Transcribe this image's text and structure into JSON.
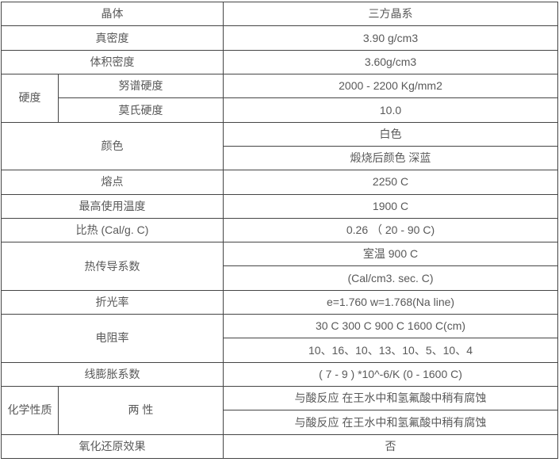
{
  "colors": {
    "border": "#454545",
    "text": "#595959",
    "background": "#ffffff"
  },
  "table": {
    "rows": [
      {
        "cells": [
          {
            "text": "晶体"
          },
          {
            "text": "三方晶系"
          }
        ]
      },
      {
        "cells": [
          {
            "text": "真密度"
          },
          {
            "text": "3.90 g/cm3"
          }
        ]
      },
      {
        "cells": [
          {
            "text": "体积密度"
          },
          {
            "text": "3.60g/cm3"
          }
        ]
      },
      {
        "cells": [
          {
            "text": "硬度"
          },
          {
            "text": "努谱硬度"
          },
          {
            "text": "2000 - 2200 Kg/mm2"
          }
        ]
      },
      {
        "cells": [
          {
            "text": "莫氏硬度"
          },
          {
            "text": "10.0"
          }
        ]
      },
      {
        "cells": [
          {
            "text": "颜色"
          },
          {
            "text": "白色"
          }
        ]
      },
      {
        "cells": [
          {
            "text": "煅烧后颜色 深蓝"
          }
        ]
      },
      {
        "cells": [
          {
            "text": "熔点"
          },
          {
            "text": "2250 C"
          }
        ]
      },
      {
        "cells": [
          {
            "text": "最高使用温度"
          },
          {
            "text": "1900 C"
          }
        ]
      },
      {
        "cells": [
          {
            "text": "比热 (Cal/g. C)"
          },
          {
            "text": "0.26 （ 20 - 90 C)"
          }
        ]
      },
      {
        "cells": [
          {
            "text": "热传导系数"
          },
          {
            "text": "室温 900 C"
          }
        ]
      },
      {
        "cells": [
          {
            "text": "(Cal/cm3. sec. C)"
          }
        ]
      },
      {
        "cells": [
          {
            "text": "折光率"
          },
          {
            "text": "e=1.760 w=1.768(Na line)"
          }
        ]
      },
      {
        "cells": [
          {
            "text": "电阻率"
          },
          {
            "text": "30 C 300 C 900 C 1600 C(cm)"
          }
        ]
      },
      {
        "cells": [
          {
            "text": "10、16、10、13、10、5、10、4"
          }
        ]
      },
      {
        "cells": [
          {
            "text": "线膨胀系数"
          },
          {
            "text": "( 7 - 9 ) *10^-6/K (0 - 1600 C)"
          }
        ]
      },
      {
        "cells": [
          {
            "text": "化学性质"
          },
          {
            "text": "两 性"
          },
          {
            "text": "与酸反应 在王水中和氢氟酸中稍有腐蚀"
          }
        ]
      },
      {
        "cells": [
          {
            "text": "与酸反应 在王水中和氢氟酸中稍有腐蚀"
          }
        ]
      },
      {
        "cells": [
          {
            "text": "氧化还原效果"
          },
          {
            "text": "否"
          }
        ]
      }
    ]
  }
}
